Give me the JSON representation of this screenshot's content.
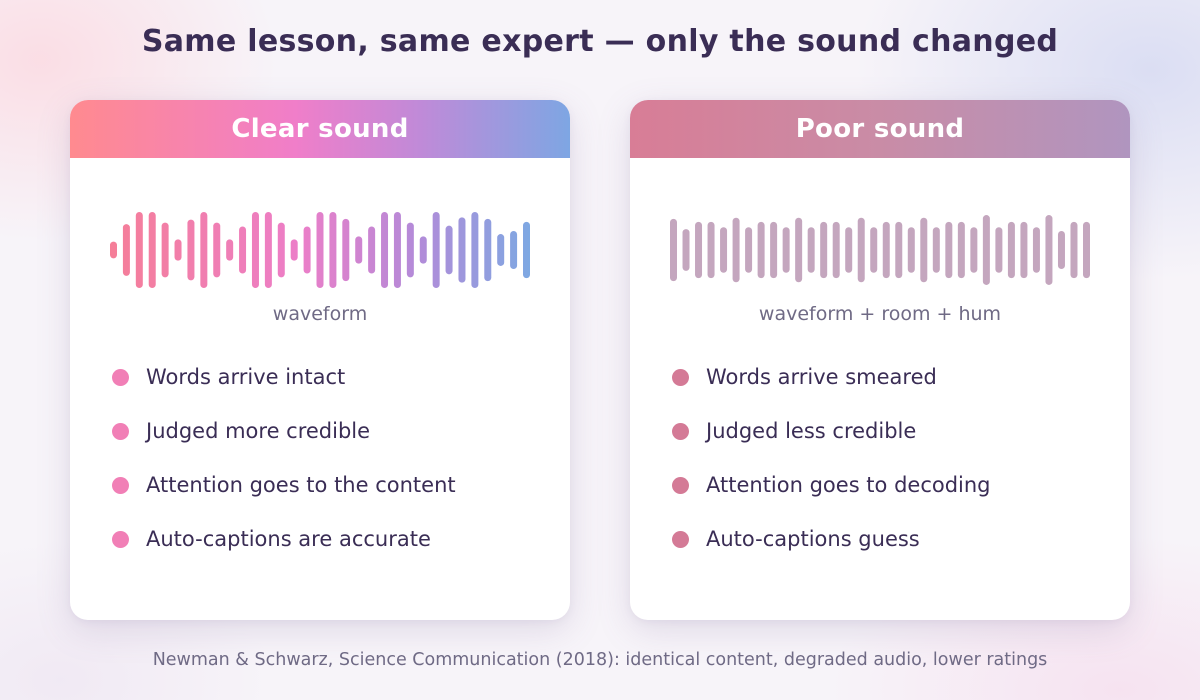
{
  "title": "Same lesson, same expert — only the sound changed",
  "colors": {
    "clear_dot": "#f17fb6",
    "poor_dot": "#d47a96",
    "clear_gradient": [
      "#ff8a8f",
      "#f07ec9",
      "#c08ad8",
      "#7ea6e3"
    ],
    "poor_bar": "#c4a6be"
  },
  "cards": {
    "clear": {
      "header": "Clear sound",
      "wave_caption": "waveform",
      "wave_levels": [
        0.22,
        0.68,
        1.0,
        1.0,
        0.72,
        0.28,
        0.8,
        1.0,
        0.72,
        0.28,
        0.62,
        1.0,
        1.0,
        0.72,
        0.28,
        0.62,
        1.0,
        1.0,
        0.82,
        0.36,
        0.62,
        1.0,
        1.0,
        0.72,
        0.36,
        1.0,
        0.64,
        0.86,
        1.0,
        0.82,
        0.42,
        0.5,
        0.74
      ],
      "items": [
        "Words arrive intact",
        "Judged more credible",
        "Attention goes to the content",
        "Auto-captions are accurate"
      ]
    },
    "poor": {
      "header": "Poor sound",
      "wave_caption": "waveform + room + hum",
      "wave_levels": [
        0.82,
        0.55,
        0.74,
        0.74,
        0.6,
        0.85,
        0.6,
        0.74,
        0.74,
        0.6,
        0.85,
        0.6,
        0.74,
        0.74,
        0.6,
        0.85,
        0.6,
        0.74,
        0.74,
        0.6,
        0.85,
        0.6,
        0.74,
        0.74,
        0.6,
        0.92,
        0.6,
        0.74,
        0.74,
        0.6,
        0.92,
        0.5,
        0.74,
        0.74
      ],
      "items": [
        "Words arrive smeared",
        "Judged less credible",
        "Attention goes to decoding",
        "Auto-captions guess"
      ]
    }
  },
  "footer": "Newman & Schwarz, Science Communication (2018): identical content, degraded audio, lower ratings"
}
